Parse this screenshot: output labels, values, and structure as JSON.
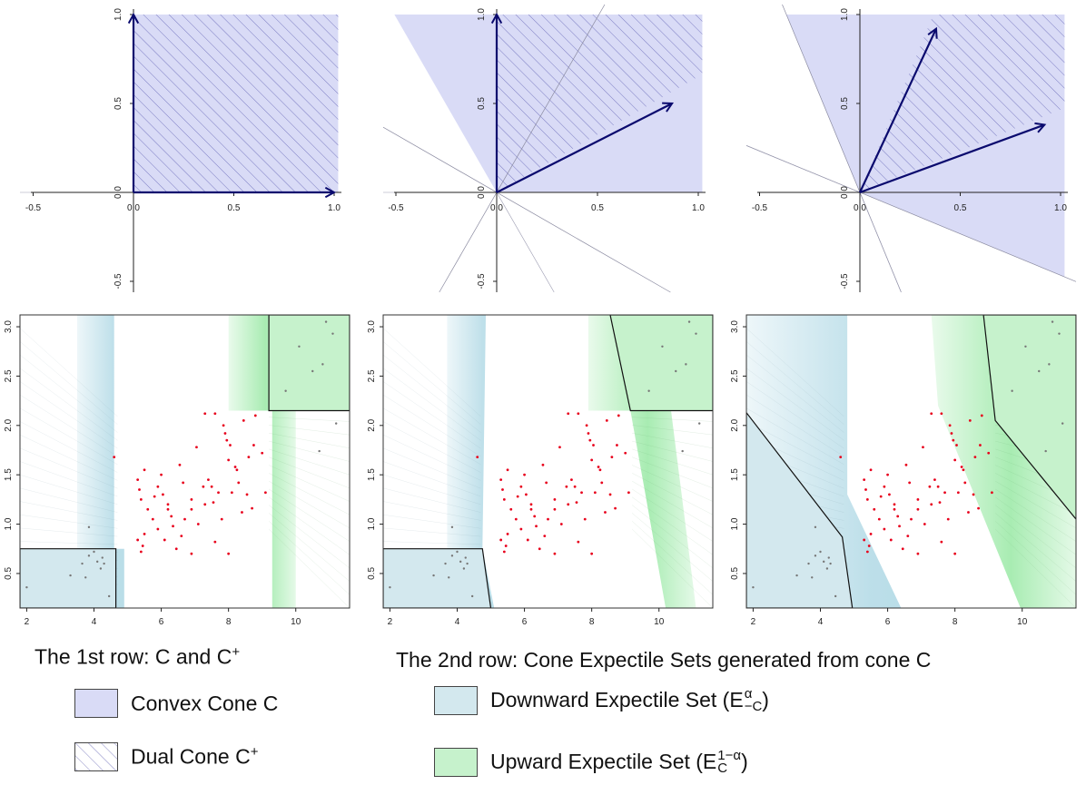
{
  "colors": {
    "cone": "#d9dbf6",
    "hatch": "#3a3aa0",
    "arrow": "#0a0a6e",
    "downward": "#b9dde8",
    "upward": "#a8ecb2",
    "point_in": "#e8001c",
    "point_out": "#777777"
  },
  "chart_data": [
    {
      "type": "scatter",
      "panel": "row1-col1",
      "x_ticks": [
        "-0.5",
        "0.0",
        "0.5",
        "1.0"
      ],
      "y_ticks": [
        "-0.5",
        "0.0",
        "0.5",
        "1.0"
      ],
      "xlim": [
        -0.5,
        1.0
      ],
      "ylim": [
        -0.5,
        1.0
      ],
      "arrows": [
        [
          1.0,
          0.0
        ],
        [
          0.0,
          1.0
        ]
      ],
      "cone_generators": [
        [
          1.0,
          0.0
        ],
        [
          0.0,
          1.0
        ]
      ],
      "dual_generators": [
        [
          1.0,
          0.0
        ],
        [
          0.0,
          1.0
        ]
      ],
      "normals": []
    },
    {
      "type": "scatter",
      "panel": "row1-col2",
      "x_ticks": [
        "-0.5",
        "0.0",
        "0.5",
        "1.0"
      ],
      "y_ticks": [
        "-0.5",
        "0.0",
        "0.5",
        "1.0"
      ],
      "xlim": [
        -0.5,
        1.0
      ],
      "ylim": [
        -0.5,
        1.0
      ],
      "arrows": [
        [
          0.0,
          1.0
        ],
        [
          0.87,
          0.5
        ]
      ],
      "cone_generators": [
        [
          1.0,
          0.0
        ],
        [
          -0.5,
          0.87
        ]
      ],
      "dual_generators": [
        [
          0.87,
          0.5
        ],
        [
          0.0,
          1.0
        ]
      ],
      "normals": [
        [
          -0.87,
          0.5
        ],
        [
          0.5,
          0.87
        ]
      ]
    },
    {
      "type": "scatter",
      "panel": "row1-col3",
      "x_ticks": [
        "-0.5",
        "0.0",
        "0.5",
        "1.0"
      ],
      "y_ticks": [
        "-0.5",
        "0.0",
        "0.5",
        "1.0"
      ],
      "xlim": [
        -0.5,
        1.0
      ],
      "ylim": [
        -0.5,
        1.0
      ],
      "arrows": [
        [
          0.38,
          0.92
        ],
        [
          0.92,
          0.38
        ]
      ],
      "cone_generators": [
        [
          0.92,
          -0.38
        ],
        [
          -0.38,
          0.92
        ]
      ],
      "dual_generators": [
        [
          0.92,
          0.38
        ],
        [
          0.38,
          0.92
        ]
      ],
      "normals": [
        [
          -0.38,
          0.92
        ],
        [
          0.92,
          -0.38
        ]
      ]
    },
    {
      "type": "scatter",
      "panel": "row2-col1",
      "x_ticks": [
        "2",
        "4",
        "6",
        "8",
        "10"
      ],
      "y_ticks": [
        "0.5",
        "1.0",
        "1.5",
        "2.0",
        "2.5",
        "3.0"
      ],
      "xlim": [
        1.8,
        11.6
      ],
      "ylim": [
        0.15,
        3.12
      ],
      "downward_region": [
        [
          1.8,
          0.15
        ],
        [
          4.65,
          0.15
        ],
        [
          4.65,
          0.75
        ],
        [
          1.8,
          0.75
        ]
      ],
      "upward_region": [
        [
          9.2,
          2.15
        ],
        [
          11.6,
          2.15
        ],
        [
          11.6,
          3.12
        ],
        [
          9.2,
          3.12
        ]
      ],
      "blue_band": [
        [
          3.5,
          0.15
        ],
        [
          4.9,
          0.15
        ],
        [
          4.9,
          0.75
        ],
        [
          4.6,
          0.75
        ],
        [
          4.6,
          3.12
        ],
        [
          3.5,
          3.12
        ]
      ],
      "green_band": [
        [
          8.0,
          2.15
        ],
        [
          9.3,
          2.15
        ],
        [
          9.3,
          0.15
        ],
        [
          10.0,
          0.15
        ],
        [
          10.0,
          3.12
        ],
        [
          8.0,
          3.12
        ]
      ]
    },
    {
      "type": "scatter",
      "panel": "row2-col2",
      "x_ticks": [
        "2",
        "4",
        "6",
        "8",
        "10"
      ],
      "y_ticks": [
        "0.5",
        "1.0",
        "1.5",
        "2.0",
        "2.5",
        "3.0"
      ],
      "xlim": [
        1.8,
        11.6
      ],
      "ylim": [
        0.15,
        3.12
      ],
      "downward_region": [
        [
          1.8,
          0.15
        ],
        [
          5.0,
          0.15
        ],
        [
          4.75,
          0.75
        ],
        [
          1.8,
          0.75
        ]
      ],
      "upward_region": [
        [
          9.15,
          2.15
        ],
        [
          11.6,
          2.15
        ],
        [
          11.6,
          3.12
        ],
        [
          8.55,
          3.12
        ]
      ],
      "blue_band": [
        [
          3.7,
          0.15
        ],
        [
          5.1,
          0.15
        ],
        [
          4.75,
          0.75
        ],
        [
          4.85,
          3.12
        ],
        [
          3.7,
          3.12
        ]
      ],
      "green_band": [
        [
          7.9,
          2.15
        ],
        [
          9.15,
          2.15
        ],
        [
          10.2,
          0.15
        ],
        [
          11.1,
          0.15
        ],
        [
          10.0,
          3.12
        ],
        [
          7.9,
          3.12
        ]
      ]
    },
    {
      "type": "scatter",
      "panel": "row2-col3",
      "x_ticks": [
        "2",
        "4",
        "6",
        "8",
        "10"
      ],
      "y_ticks": [
        "0.5",
        "1.0",
        "1.5",
        "2.0",
        "2.5",
        "3.0"
      ],
      "xlim": [
        1.8,
        11.6
      ],
      "ylim": [
        0.15,
        3.12
      ],
      "downward_region": [
        [
          1.8,
          0.15
        ],
        [
          4.95,
          0.15
        ],
        [
          4.65,
          0.87
        ],
        [
          1.8,
          2.13
        ]
      ],
      "upward_region": [
        [
          9.2,
          2.05
        ],
        [
          11.6,
          1.05
        ],
        [
          11.6,
          3.12
        ],
        [
          8.85,
          3.12
        ]
      ],
      "blue_band": [
        [
          1.8,
          2.13
        ],
        [
          4.65,
          0.87
        ],
        [
          4.95,
          0.15
        ],
        [
          6.4,
          0.15
        ],
        [
          4.8,
          1.3
        ],
        [
          4.8,
          3.12
        ],
        [
          1.8,
          3.12
        ]
      ],
      "green_band": [
        [
          7.3,
          3.12
        ],
        [
          8.85,
          3.12
        ],
        [
          9.2,
          2.05
        ],
        [
          11.6,
          1.05
        ],
        [
          11.6,
          0.15
        ],
        [
          9.95,
          0.15
        ],
        [
          7.5,
          2.2
        ]
      ]
    }
  ],
  "points": {
    "inner": [
      [
        4.6,
        1.68
      ],
      [
        5.3,
        1.45
      ],
      [
        5.35,
        1.35
      ],
      [
        5.5,
        1.55
      ],
      [
        5.4,
        1.25
      ],
      [
        5.6,
        1.15
      ],
      [
        5.75,
        1.05
      ],
      [
        5.9,
        0.95
      ],
      [
        5.5,
        0.9
      ],
      [
        5.45,
        0.78
      ],
      [
        5.4,
        0.72
      ],
      [
        5.9,
        1.38
      ],
      [
        6.0,
        1.5
      ],
      [
        6.05,
        1.3
      ],
      [
        6.2,
        1.15
      ],
      [
        6.3,
        1.08
      ],
      [
        6.35,
        0.98
      ],
      [
        6.55,
        1.6
      ],
      [
        6.65,
        1.42
      ],
      [
        6.6,
        0.88
      ],
      [
        6.9,
        1.25
      ],
      [
        6.9,
        0.7
      ],
      [
        7.1,
        1.0
      ],
      [
        7.05,
        1.78
      ],
      [
        7.25,
        1.38
      ],
      [
        7.3,
        1.2
      ],
      [
        7.4,
        1.45
      ],
      [
        7.5,
        1.38
      ],
      [
        7.55,
        1.22
      ],
      [
        7.3,
        2.12
      ],
      [
        7.7,
        1.32
      ],
      [
        7.8,
        1.05
      ],
      [
        7.85,
        2.0
      ],
      [
        7.95,
        1.85
      ],
      [
        8.0,
        1.65
      ],
      [
        8.05,
        1.8
      ],
      [
        8.1,
        1.32
      ],
      [
        8.2,
        1.58
      ],
      [
        8.25,
        1.55
      ],
      [
        8.3,
        1.42
      ],
      [
        8.45,
        2.05
      ],
      [
        8.55,
        1.3
      ],
      [
        8.6,
        1.68
      ],
      [
        8.75,
        1.8
      ],
      [
        8.8,
        2.1
      ],
      [
        9.0,
        1.72
      ],
      [
        9.1,
        1.32
      ],
      [
        8.7,
        1.16
      ],
      [
        6.1,
        0.84
      ],
      [
        6.45,
        0.75
      ],
      [
        8.0,
        0.7
      ],
      [
        6.7,
        1.05
      ],
      [
        7.9,
        1.92
      ],
      [
        7.6,
        2.12
      ],
      [
        5.3,
        0.84
      ],
      [
        6.9,
        1.15
      ],
      [
        6.2,
        1.2
      ],
      [
        5.8,
        1.28
      ],
      [
        8.4,
        1.12
      ],
      [
        7.6,
        0.82
      ]
    ],
    "lower": [
      [
        2.0,
        0.36
      ],
      [
        3.3,
        0.48
      ],
      [
        3.65,
        0.6
      ],
      [
        3.75,
        0.46
      ],
      [
        3.85,
        0.68
      ],
      [
        3.85,
        0.97
      ],
      [
        4.1,
        0.62
      ],
      [
        4.25,
        0.66
      ],
      [
        4.3,
        0.6
      ],
      [
        4.45,
        0.27
      ],
      [
        4.0,
        0.72
      ],
      [
        4.2,
        0.55
      ]
    ],
    "upper": [
      [
        9.7,
        2.35
      ],
      [
        10.1,
        2.8
      ],
      [
        10.5,
        2.55
      ],
      [
        10.8,
        2.62
      ],
      [
        10.9,
        3.05
      ],
      [
        11.1,
        2.93
      ],
      [
        11.2,
        2.02
      ],
      [
        10.7,
        1.74
      ]
    ]
  },
  "captions": {
    "row1": "The 1st row: C and C",
    "row1_sup": "+",
    "row2": "The 2nd row: Cone Expectile Sets generated from cone C"
  },
  "legend": {
    "convex": "Convex Cone C",
    "dual": "Dual Cone C",
    "dual_sup": "+",
    "downward": "Downward Expectile Set (E",
    "downward_sup": "α",
    "downward_sub": "−C",
    "downward_close": ")",
    "upward": "Upward Expectile Set (E",
    "upward_sup": "1−α",
    "upward_sub": "C",
    "upward_close": ")"
  }
}
